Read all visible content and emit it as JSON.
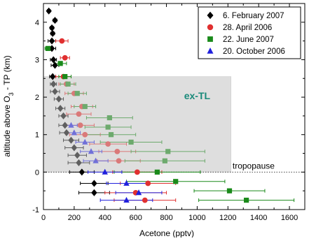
{
  "chart_data": {
    "type": "scatter",
    "xlabel": "Acetone (pptv)",
    "ylabel": "altitude above O3 - TP (km)",
    "xlim": [
      0,
      1700
    ],
    "ylim": [
      -1,
      4.5
    ],
    "x_ticks": [
      0,
      200,
      400,
      600,
      800,
      1000,
      1200,
      1400,
      1600
    ],
    "y_ticks": [
      -1,
      0,
      1,
      2,
      3,
      4
    ],
    "x_tick_labels": [
      "0",
      "200",
      "400",
      "600",
      "800",
      "1000",
      "1200",
      "1400",
      "1600"
    ],
    "y_tick_labels": [
      "-1",
      "0",
      "1",
      "2",
      "3",
      "4"
    ],
    "legend_position": "top-right",
    "grid": false,
    "annotations": {
      "region_label": "ex-TL",
      "region_color": "#1a8a7a",
      "tropopause_label": "tropopause",
      "ex_tl_region": {
        "x": [
          0,
          1220
        ],
        "y": [
          0,
          2.55
        ]
      }
    },
    "series": [
      {
        "name": "6. February 2007",
        "color": "#000000",
        "marker": "diamond",
        "points": [
          {
            "x": 35,
            "y": 4.3,
            "xerr": 10
          },
          {
            "x": 75,
            "y": 4.05,
            "xerr": 12
          },
          {
            "x": 55,
            "y": 3.85,
            "xerr": 12
          },
          {
            "x": 60,
            "y": 3.7,
            "xerr": 12
          },
          {
            "x": 55,
            "y": 3.5,
            "xerr": 25
          },
          {
            "x": 55,
            "y": 3.3,
            "xerr": 25
          },
          {
            "x": 65,
            "y": 3.0,
            "xerr": 20
          },
          {
            "x": 75,
            "y": 2.85,
            "xerr": 25
          },
          {
            "x": 60,
            "y": 2.55,
            "xerr": 20
          },
          {
            "x": 65,
            "y": 2.35,
            "xerr": 20
          },
          {
            "x": 75,
            "y": 2.15,
            "xerr": 30
          },
          {
            "x": 100,
            "y": 1.95,
            "xerr": 30
          },
          {
            "x": 110,
            "y": 1.7,
            "xerr": 30
          },
          {
            "x": 130,
            "y": 1.5,
            "xerr": 30
          },
          {
            "x": 140,
            "y": 1.25,
            "xerr": 40
          },
          {
            "x": 150,
            "y": 1.05,
            "xerr": 45
          },
          {
            "x": 180,
            "y": 0.85,
            "xerr": 50
          },
          {
            "x": 200,
            "y": 0.65,
            "xerr": 60
          },
          {
            "x": 220,
            "y": 0.45,
            "xerr": 60
          },
          {
            "x": 230,
            "y": 0.25,
            "xerr": 70
          },
          {
            "x": 250,
            "y": 0.0,
            "xerr": 80
          },
          {
            "x": 330,
            "y": -0.3,
            "xerr": 90
          },
          {
            "x": 330,
            "y": -0.55,
            "xerr": 100
          }
        ]
      },
      {
        "name": "28. April 2006",
        "color": "#e03030",
        "marker": "circle",
        "points": [
          {
            "x": 120,
            "y": 3.5,
            "xerr": 40
          },
          {
            "x": 140,
            "y": 3.05,
            "xerr": 30
          },
          {
            "x": 130,
            "y": 2.55,
            "xerr": 50
          },
          {
            "x": 150,
            "y": 2.35,
            "xerr": 50
          },
          {
            "x": 200,
            "y": 2.1,
            "xerr": 60
          },
          {
            "x": 250,
            "y": 1.75,
            "xerr": 70
          },
          {
            "x": 230,
            "y": 1.55,
            "xerr": 80
          },
          {
            "x": 240,
            "y": 1.25,
            "xerr": 90
          },
          {
            "x": 270,
            "y": 1.0,
            "xerr": 100
          },
          {
            "x": 420,
            "y": 0.75,
            "xerr": 120
          },
          {
            "x": 480,
            "y": 0.55,
            "xerr": 120
          },
          {
            "x": 490,
            "y": 0.3,
            "xerr": 140
          },
          {
            "x": 610,
            "y": 0.0,
            "xerr": 160
          },
          {
            "x": 680,
            "y": -0.3,
            "xerr": 180
          },
          {
            "x": 600,
            "y": -0.55,
            "xerr": 200
          },
          {
            "x": 660,
            "y": -0.75,
            "xerr": 200
          }
        ]
      },
      {
        "name": "22. June 2007",
        "color": "#1a8a1a",
        "marker": "square",
        "points": [
          {
            "x": 30,
            "y": 3.3,
            "xerr": 20
          },
          {
            "x": 110,
            "y": 2.9,
            "xerr": 40
          },
          {
            "x": 140,
            "y": 2.55,
            "xerr": 40
          },
          {
            "x": 160,
            "y": 2.35,
            "xerr": 50
          },
          {
            "x": 220,
            "y": 2.1,
            "xerr": 60
          },
          {
            "x": 270,
            "y": 1.75,
            "xerr": 70
          },
          {
            "x": 430,
            "y": 1.45,
            "xerr": 150
          },
          {
            "x": 420,
            "y": 1.2,
            "xerr": 150
          },
          {
            "x": 440,
            "y": 1.0,
            "xerr": 160
          },
          {
            "x": 570,
            "y": 0.8,
            "xerr": 200
          },
          {
            "x": 810,
            "y": 0.55,
            "xerr": 240
          },
          {
            "x": 790,
            "y": 0.3,
            "xerr": 260
          },
          {
            "x": 740,
            "y": 0.0,
            "xerr": 280
          },
          {
            "x": 860,
            "y": -0.25,
            "xerr": 320
          },
          {
            "x": 1210,
            "y": -0.5,
            "xerr": 230
          },
          {
            "x": 1320,
            "y": -0.75,
            "xerr": 310
          }
        ]
      },
      {
        "name": "20. October 2006",
        "color": "#2020dd",
        "marker": "triangle",
        "points": [
          {
            "x": 180,
            "y": 1.25,
            "xerr": 40
          },
          {
            "x": 200,
            "y": 1.05,
            "xerr": 40
          },
          {
            "x": 270,
            "y": 0.8,
            "xerr": 60
          },
          {
            "x": 310,
            "y": 0.55,
            "xerr": 70
          },
          {
            "x": 340,
            "y": 0.3,
            "xerr": 80
          },
          {
            "x": 400,
            "y": 0.0,
            "xerr": 110
          },
          {
            "x": 540,
            "y": -0.3,
            "xerr": 130
          },
          {
            "x": 620,
            "y": -0.55,
            "xerr": 150
          },
          {
            "x": 540,
            "y": -0.75,
            "xerr": 170
          }
        ]
      }
    ]
  }
}
